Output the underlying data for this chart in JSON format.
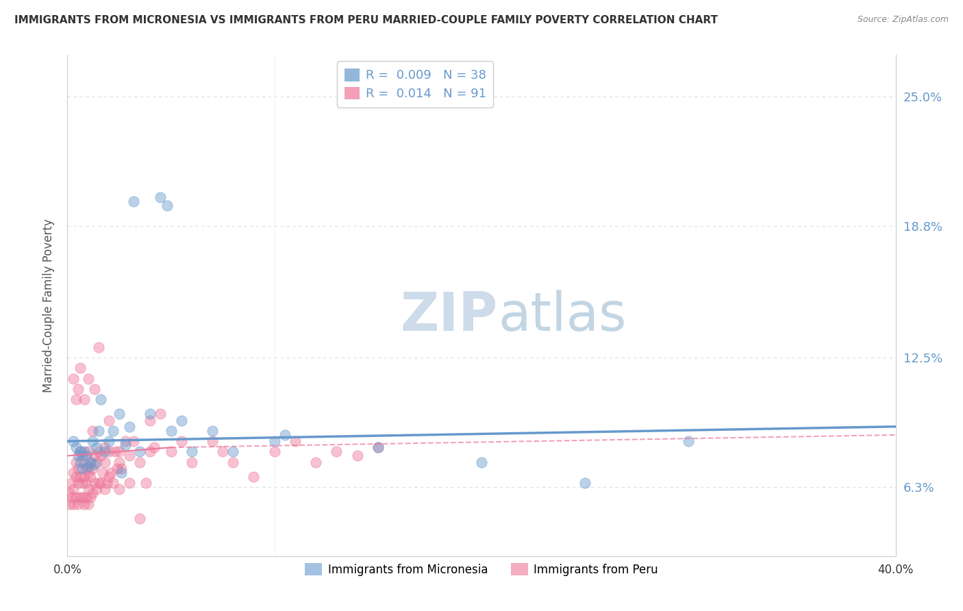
{
  "title": "IMMIGRANTS FROM MICRONESIA VS IMMIGRANTS FROM PERU MARRIED-COUPLE FAMILY POVERTY CORRELATION CHART",
  "source": "Source: ZipAtlas.com",
  "ylabel": "Married-Couple Family Poverty",
  "xlim": [
    0.0,
    40.0
  ],
  "ylim": [
    3.0,
    27.0
  ],
  "ytick_values": [
    6.3,
    12.5,
    18.8,
    25.0
  ],
  "micronesia_color": "#6699cc",
  "peru_color": "#ee7799",
  "micronesia_R": "0.009",
  "micronesia_N": "38",
  "peru_R": "0.014",
  "peru_N": "91",
  "legend_label_1": "Immigrants from Micronesia",
  "legend_label_2": "Immigrants from Peru",
  "watermark_zip": "ZIP",
  "watermark_atlas": "atlas",
  "background_color": "#ffffff",
  "grid_color": "#dddddd",
  "axis_color": "#cccccc",
  "tick_color": "#6699cc",
  "micronesia_scatter": [
    [
      0.3,
      8.5
    ],
    [
      0.4,
      8.2
    ],
    [
      0.5,
      7.8
    ],
    [
      0.6,
      7.5
    ],
    [
      0.6,
      8.0
    ],
    [
      0.7,
      7.2
    ],
    [
      0.8,
      8.0
    ],
    [
      0.9,
      7.8
    ],
    [
      1.0,
      7.3
    ],
    [
      1.1,
      7.5
    ],
    [
      1.2,
      8.5
    ],
    [
      1.3,
      7.4
    ],
    [
      1.4,
      8.2
    ],
    [
      1.5,
      9.0
    ],
    [
      1.6,
      10.5
    ],
    [
      1.8,
      8.0
    ],
    [
      2.0,
      8.5
    ],
    [
      2.2,
      9.0
    ],
    [
      2.5,
      9.8
    ],
    [
      2.6,
      7.0
    ],
    [
      2.8,
      8.3
    ],
    [
      3.0,
      9.2
    ],
    [
      3.2,
      20.0
    ],
    [
      3.5,
      8.0
    ],
    [
      4.0,
      9.8
    ],
    [
      4.5,
      20.2
    ],
    [
      4.8,
      19.8
    ],
    [
      5.0,
      9.0
    ],
    [
      5.5,
      9.5
    ],
    [
      6.0,
      8.0
    ],
    [
      7.0,
      9.0
    ],
    [
      8.0,
      8.0
    ],
    [
      10.0,
      8.5
    ],
    [
      10.5,
      8.8
    ],
    [
      15.0,
      8.2
    ],
    [
      20.0,
      7.5
    ],
    [
      25.0,
      6.5
    ],
    [
      30.0,
      8.5
    ]
  ],
  "peru_scatter": [
    [
      0.1,
      5.5
    ],
    [
      0.1,
      6.0
    ],
    [
      0.2,
      5.8
    ],
    [
      0.2,
      6.5
    ],
    [
      0.3,
      5.5
    ],
    [
      0.3,
      6.2
    ],
    [
      0.3,
      7.0
    ],
    [
      0.4,
      5.8
    ],
    [
      0.4,
      6.8
    ],
    [
      0.4,
      7.5
    ],
    [
      0.5,
      5.5
    ],
    [
      0.5,
      6.5
    ],
    [
      0.5,
      7.2
    ],
    [
      0.6,
      5.8
    ],
    [
      0.6,
      6.8
    ],
    [
      0.6,
      8.0
    ],
    [
      0.7,
      5.8
    ],
    [
      0.7,
      6.5
    ],
    [
      0.7,
      7.8
    ],
    [
      0.8,
      5.5
    ],
    [
      0.8,
      6.8
    ],
    [
      0.8,
      7.5
    ],
    [
      0.9,
      5.8
    ],
    [
      0.9,
      6.5
    ],
    [
      0.9,
      7.2
    ],
    [
      1.0,
      5.5
    ],
    [
      1.0,
      6.2
    ],
    [
      1.0,
      7.0
    ],
    [
      1.0,
      8.0
    ],
    [
      1.1,
      5.8
    ],
    [
      1.1,
      6.8
    ],
    [
      1.1,
      7.5
    ],
    [
      1.2,
      6.0
    ],
    [
      1.2,
      7.2
    ],
    [
      1.2,
      9.0
    ],
    [
      1.3,
      6.5
    ],
    [
      1.3,
      7.8
    ],
    [
      1.3,
      11.0
    ],
    [
      1.4,
      6.2
    ],
    [
      1.4,
      7.5
    ],
    [
      1.5,
      6.5
    ],
    [
      1.5,
      8.0
    ],
    [
      1.5,
      13.0
    ],
    [
      1.6,
      6.5
    ],
    [
      1.6,
      7.8
    ],
    [
      1.7,
      7.0
    ],
    [
      1.8,
      6.2
    ],
    [
      1.8,
      7.5
    ],
    [
      1.8,
      8.2
    ],
    [
      1.9,
      6.5
    ],
    [
      2.0,
      6.8
    ],
    [
      2.0,
      8.0
    ],
    [
      2.0,
      9.5
    ],
    [
      2.1,
      7.0
    ],
    [
      2.2,
      6.5
    ],
    [
      2.3,
      8.0
    ],
    [
      2.4,
      7.2
    ],
    [
      2.5,
      6.2
    ],
    [
      2.5,
      8.0
    ],
    [
      2.6,
      7.2
    ],
    [
      2.8,
      8.5
    ],
    [
      3.0,
      6.5
    ],
    [
      3.0,
      7.8
    ],
    [
      3.2,
      8.5
    ],
    [
      3.5,
      7.5
    ],
    [
      3.8,
      6.5
    ],
    [
      4.0,
      8.0
    ],
    [
      4.0,
      9.5
    ],
    [
      4.2,
      8.2
    ],
    [
      4.5,
      9.8
    ],
    [
      5.0,
      8.0
    ],
    [
      5.5,
      8.5
    ],
    [
      6.0,
      7.5
    ],
    [
      7.0,
      8.5
    ],
    [
      7.5,
      8.0
    ],
    [
      8.0,
      7.5
    ],
    [
      9.0,
      6.8
    ],
    [
      10.0,
      8.0
    ],
    [
      11.0,
      8.5
    ],
    [
      12.0,
      7.5
    ],
    [
      13.0,
      8.0
    ],
    [
      14.0,
      7.8
    ],
    [
      15.0,
      8.2
    ],
    [
      0.3,
      11.5
    ],
    [
      0.4,
      10.5
    ],
    [
      0.5,
      11.0
    ],
    [
      0.6,
      12.0
    ],
    [
      0.8,
      10.5
    ],
    [
      1.0,
      11.5
    ],
    [
      2.5,
      7.5
    ],
    [
      3.5,
      4.8
    ]
  ],
  "mic_trend": [
    0.0,
    8.5,
    40.0,
    9.2
  ],
  "peru_trend_solid": [
    0.0,
    7.8,
    5.0,
    8.2
  ],
  "peru_trend_dashed": [
    5.0,
    8.2,
    40.0,
    8.8
  ]
}
